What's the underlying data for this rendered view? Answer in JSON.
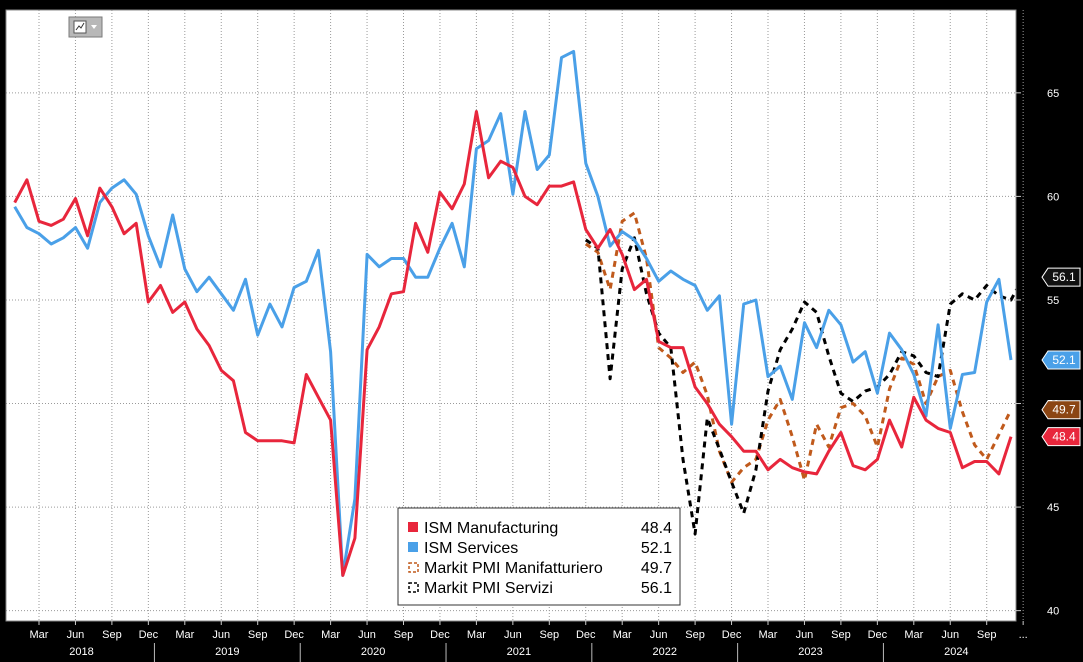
{
  "chart_data": {
    "type": "line",
    "ylim": [
      39.5,
      69
    ],
    "y_ticks": [
      40,
      45,
      50,
      55,
      60,
      65
    ],
    "y_tick_labels": [
      "40",
      "45",
      "50",
      "55",
      "60",
      "65"
    ],
    "x_range": [
      "2018-01",
      "2024-12"
    ],
    "month_tick_labels": [
      {
        "t": "2018-03",
        "label": "Mar"
      },
      {
        "t": "2018-06",
        "label": "Jun"
      },
      {
        "t": "2018-09",
        "label": "Sep"
      },
      {
        "t": "2018-12",
        "label": "Dec"
      },
      {
        "t": "2019-03",
        "label": "Mar"
      },
      {
        "t": "2019-06",
        "label": "Jun"
      },
      {
        "t": "2019-09",
        "label": "Sep"
      },
      {
        "t": "2019-12",
        "label": "Dec"
      },
      {
        "t": "2020-03",
        "label": "Mar"
      },
      {
        "t": "2020-06",
        "label": "Jun"
      },
      {
        "t": "2020-09",
        "label": "Sep"
      },
      {
        "t": "2020-12",
        "label": "Dec"
      },
      {
        "t": "2021-03",
        "label": "Mar"
      },
      {
        "t": "2021-06",
        "label": "Jun"
      },
      {
        "t": "2021-09",
        "label": "Sep"
      },
      {
        "t": "2021-12",
        "label": "Dec"
      },
      {
        "t": "2022-03",
        "label": "Mar"
      },
      {
        "t": "2022-06",
        "label": "Jun"
      },
      {
        "t": "2022-09",
        "label": "Sep"
      },
      {
        "t": "2022-12",
        "label": "Dec"
      },
      {
        "t": "2023-03",
        "label": "Mar"
      },
      {
        "t": "2023-06",
        "label": "Jun"
      },
      {
        "t": "2023-09",
        "label": "Sep"
      },
      {
        "t": "2023-12",
        "label": "Dec"
      },
      {
        "t": "2024-03",
        "label": "Mar"
      },
      {
        "t": "2024-06",
        "label": "Jun"
      },
      {
        "t": "2024-09",
        "label": "Sep"
      },
      {
        "t": "2024-12",
        "label": "..."
      }
    ],
    "year_labels": [
      {
        "year": "2018",
        "t": "2018-07"
      },
      {
        "year": "2019",
        "t": "2019-07"
      },
      {
        "year": "2020",
        "t": "2020-07"
      },
      {
        "year": "2021",
        "t": "2021-07"
      },
      {
        "year": "2022",
        "t": "2022-07"
      },
      {
        "year": "2023",
        "t": "2023-07"
      },
      {
        "year": "2024",
        "t": "2024-07"
      }
    ],
    "grid": true,
    "legend_position": "bottom-center",
    "series": [
      {
        "name": "ISM Manufacturing",
        "last": "48.4",
        "color": "#e8263c",
        "dash": "solid",
        "start": "2018-01",
        "values": [
          59.7,
          60.8,
          58.8,
          58.6,
          58.9,
          59.9,
          58.1,
          60.4,
          59.5,
          58.2,
          58.7,
          54.9,
          55.7,
          54.4,
          54.9,
          53.6,
          52.8,
          51.6,
          51.1,
          48.6,
          48.2,
          48.2,
          48.2,
          48.1,
          51.4,
          50.3,
          49.2,
          41.7,
          43.5,
          52.6,
          53.7,
          55.3,
          55.4,
          58.7,
          57.3,
          60.2,
          59.4,
          60.6,
          64.1,
          60.9,
          61.7,
          61.4,
          60.0,
          59.6,
          60.5,
          60.5,
          60.7,
          58.4,
          57.5,
          58.4,
          57.2,
          55.5,
          56.0,
          53.0,
          52.7,
          52.7,
          50.8,
          50.0,
          49.0,
          48.4,
          47.7,
          47.7,
          46.8,
          47.3,
          46.9,
          46.7,
          46.6,
          47.7,
          48.6,
          47.0,
          46.8,
          47.3,
          49.2,
          47.9,
          50.3,
          49.2,
          48.8,
          48.6,
          46.9,
          47.2,
          47.2,
          46.6,
          48.4
        ]
      },
      {
        "name": "ISM Services",
        "last": "52.1",
        "color": "#4aa0e8",
        "dash": "solid",
        "start": "2018-01",
        "values": [
          59.5,
          58.5,
          58.2,
          57.7,
          58.0,
          58.5,
          57.5,
          59.7,
          60.4,
          60.8,
          60.1,
          58.1,
          56.6,
          59.1,
          56.5,
          55.4,
          56.1,
          55.3,
          54.5,
          56.0,
          53.3,
          54.8,
          53.7,
          55.6,
          55.9,
          57.4,
          52.5,
          41.7,
          45.4,
          57.2,
          56.6,
          57.0,
          57.0,
          56.1,
          56.1,
          57.5,
          58.7,
          56.6,
          62.3,
          62.7,
          64.0,
          60.1,
          64.1,
          61.3,
          62.0,
          66.7,
          67.0,
          61.6,
          60.0,
          57.6,
          58.3,
          57.9,
          57.0,
          55.9,
          56.4,
          56.0,
          55.7,
          54.5,
          55.2,
          49.0,
          54.8,
          55.0,
          51.3,
          51.8,
          50.2,
          53.9,
          52.7,
          54.5,
          53.8,
          52.0,
          52.5,
          50.5,
          53.4,
          52.6,
          51.4,
          49.4,
          53.8,
          48.8,
          51.4,
          51.5,
          54.9,
          56.0,
          52.1
        ]
      },
      {
        "name": "Markit PMI Manifatturiero",
        "last": "49.7",
        "color": "#c05a1c",
        "dash": "6,5",
        "start": "2021-12",
        "values": [
          57.7,
          57.3,
          55.5,
          58.8,
          59.2,
          57.0,
          52.7,
          52.2,
          51.5,
          52.0,
          50.4,
          47.7,
          46.2,
          46.9,
          47.3,
          49.2,
          50.2,
          48.4,
          46.3,
          49.0,
          47.9,
          49.8,
          50.0,
          49.4,
          47.9,
          50.7,
          52.2,
          51.9,
          50.0,
          51.3,
          51.6,
          49.6,
          48.0,
          47.3,
          48.5,
          49.7
        ]
      },
      {
        "name": "Markit PMI Servizi",
        "last": "56.1",
        "color": "#000000",
        "dash": "6,5",
        "start": "2021-12",
        "values": [
          57.9,
          57.5,
          51.2,
          56.5,
          58.0,
          55.3,
          53.4,
          52.7,
          47.3,
          43.7,
          49.3,
          47.8,
          46.2,
          44.7,
          46.8,
          50.6,
          52.6,
          53.6,
          54.9,
          54.4,
          52.3,
          50.5,
          50.1,
          50.6,
          50.8,
          51.4,
          52.5,
          52.3,
          51.5,
          51.3,
          54.8,
          55.3,
          55.0,
          55.7,
          55.2,
          55.0,
          56.1
        ]
      }
    ]
  },
  "toolbar": {
    "icon": "chart-type-icon"
  }
}
